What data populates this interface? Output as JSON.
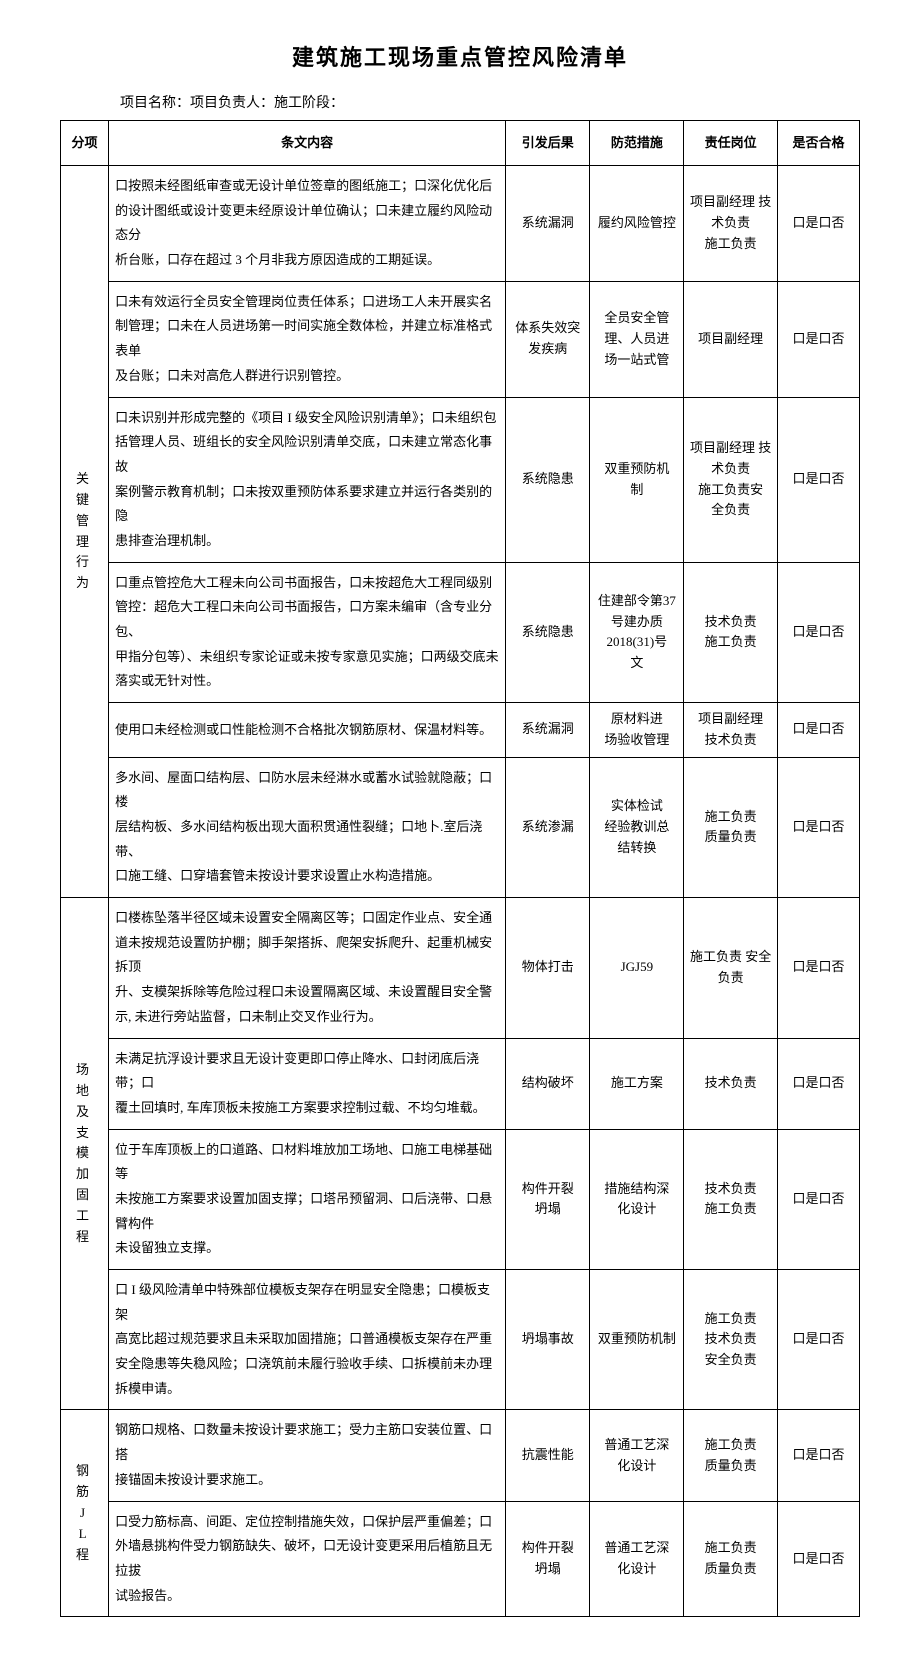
{
  "doc": {
    "title": "建筑施工现场重点管控风险清单",
    "subtitle": "项目名称：项目负责人：施工阶段："
  },
  "headers": {
    "category": "分项",
    "content": "条文内容",
    "result": "引发后果",
    "prevent": "防范措施",
    "role": "责任岗位",
    "check": "是否合格"
  },
  "check_label": "口是口否",
  "categories": {
    "c1": "关键管理行为",
    "c2": "场地及支模加固工程",
    "c3": "钢筋JL程"
  },
  "rows": [
    {
      "content": "口按照未经图纸审查或无设计单位签章的图纸施工；口深化优化后的设计图纸或设计变更未经原设计单位确认；口未建立履约风险动态分\n析台账，口存在超过 3 个月非我方原因造成的工期延误。",
      "result": "系统漏洞",
      "prevent": "履约风险管控",
      "role": "项目副经理 技术负责\n施工负责"
    },
    {
      "content": "口未有效运行全员安全管理岗位责任体系；口进场工人未开展实名制管理；口未在人员进场第一时间实施全数体检，并建立标准格式表单\n及台账；口未对高危人群进行识别管控。",
      "result": "体系失效突发疾病",
      "prevent": "全员安全管理、人员进\n场一站式管",
      "role": "项目副经理"
    },
    {
      "content": "口未识别并形成完整的《项目 I 级安全风险识别清单》；口未组织包括管理人员、班组长的安全风险识别清单交底，口未建立常态化事故\n案例警示教育机制；口未按双重预防体系要求建立并运行各类别的隐\n患排查治理机制。",
      "result": "系统隐患",
      "prevent": "双重预防机\n制",
      "role": "项目副经理 技术负责\n施工负责安\n全负责"
    },
    {
      "content": "口重点管控危大工程未向公司书面报告，口未按超危大工程同级别管控：超危大工程口未向公司书面报告，口方案未编审（含专业分包、\n甲指分包等）、未组织专家论证或未按专家意见实施；口两级交底未\n落实或无针对性。",
      "result": "系统隐患",
      "prevent": "住建部令第37 号建办质\n2018(31)号\n文",
      "role": "技术负责\n施工负责"
    },
    {
      "content": "使用口未经检测或口性能检测不合格批次钢筋原材、保温材料等。",
      "result": "系统漏洞",
      "prevent": "原材料进\n场验收管理",
      "role": "项目副经理\n技术负责"
    },
    {
      "content": "多水间、屋面口结构层、口防水层未经淋水或蓄水试验就隐蔽；口楼\n层结构板、多水间结构板出现大面积贯通性裂缝；口地卜.室后浇带、\n口施工缝、口穿墙套管未按设计要求设置止水构造措施。",
      "result": "系统渗漏",
      "prevent": "实体检试\n经验教训总\n结转换",
      "role": "施工负责\n质量负责"
    },
    {
      "content": "口楼栋坠落半径区域未设置安全隔离区等；口固定作业点、安全通道未按规范设置防护棚；脚手架搭拆、爬架安拆爬升、起重机械安拆顶\n升、支模架拆除等危险过程口未设置隔离区域、未设置醒目安全警\n示, 未进行旁站监督，口未制止交叉作业行为。",
      "result": "物体打击",
      "prevent": "JGJ59",
      "role": "施工负责 安全负责"
    },
    {
      "content": "未满足抗浮设计要求且无设计变更即口停止降水、口封闭底后浇带；口\n覆土回填时, 车库顶板未按施工方案要求控制过载、不均匀堆载。",
      "result": "结构破坏",
      "prevent": "施工方案",
      "role": "技术负责"
    },
    {
      "content": "位于车库顶板上的口道路、口材料堆放加工场地、口施工电梯基础等\n未按施工方案要求设置加固支撑；口塔吊预留洞、口后浇带、口悬臂构件\n未设留独立支撑。",
      "result": "构件开裂\n坍塌",
      "prevent": "措施结构深\n化设计",
      "role": "技术负责\n施工负责"
    },
    {
      "content": "口 I 级风险清单中特殊部位模板支架存在明显安全隐患；口模板支架\n高宽比超过规范要求且未采取加固措施；口普通模板支架存在严重安全隐患等失稳风险；口浇筑前未履行验收手续、口拆模前未办理拆模申请。",
      "result": "坍塌事故",
      "prevent": "双重预防机制",
      "role": "施工负责\n技术负责\n安全负责"
    },
    {
      "content": "钢筋口规格、口数量未按设计要求施工；受力主筋口安装位置、口搭\n接锚固未按设计要求施工。",
      "result": "抗震性能",
      "prevent": "普通工艺深\n化设计",
      "role": "施工负责\n质量负责"
    },
    {
      "content": "口受力筋标高、间距、定位控制措施失效，口保护层严重偏差；口外墙悬挑构件受力钢筋缺失、破坏，口无设计变更采用后植筋且无拉拔\n试验报告。",
      "result": "构件开裂\n坍塌",
      "prevent": "普通工艺深\n化设计",
      "role": "施工负责\n质量负责"
    }
  ]
}
